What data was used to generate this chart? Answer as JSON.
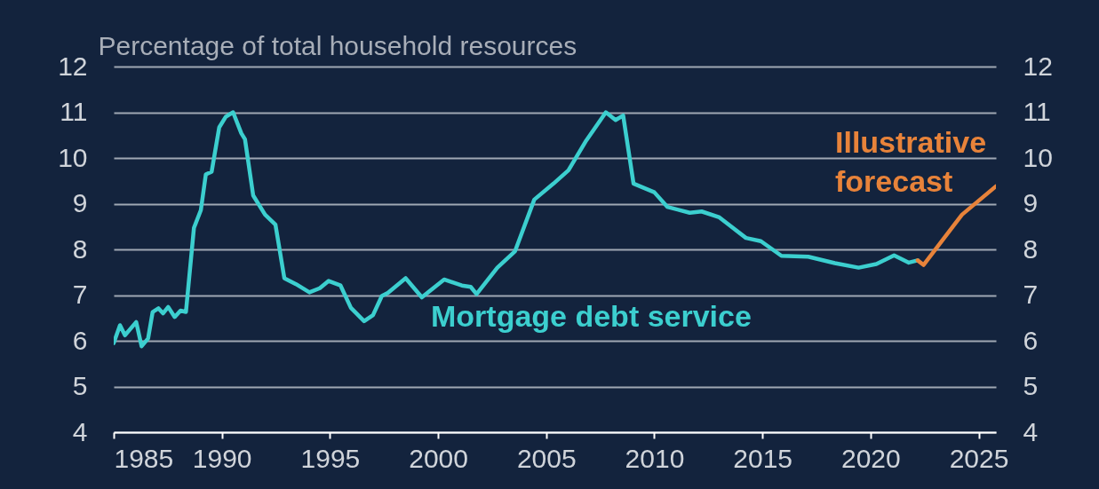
{
  "chart_data": {
    "type": "line",
    "ylabel": "Percentage of total household resources",
    "xlim": [
      1985,
      2025.8
    ],
    "xticks": [
      1985,
      1990,
      1995,
      2000,
      2005,
      2010,
      2015,
      2020,
      2025
    ],
    "ylim": [
      4,
      12
    ],
    "yticks": [
      4,
      5,
      6,
      7,
      8,
      9,
      10,
      11,
      12
    ],
    "y2lim": [
      4,
      12
    ],
    "y2ticks": [
      4,
      5,
      6,
      7,
      8,
      9,
      10,
      11,
      12
    ],
    "grid": "y",
    "line_style": "solid",
    "marker": "none",
    "series": [
      {
        "name": "Mortgage debt service",
        "color": "#3ccfcf",
        "x": [
          1985.0,
          1985.29,
          1985.52,
          1986.04,
          1986.29,
          1986.59,
          1986.8,
          1987.07,
          1987.28,
          1987.52,
          1987.82,
          1988.09,
          1988.34,
          1988.71,
          1989.03,
          1989.26,
          1989.53,
          1989.88,
          1990.18,
          1990.52,
          1990.9,
          1991.07,
          1991.45,
          1992.0,
          1992.48,
          1992.89,
          1993.43,
          1994.05,
          1994.53,
          1994.94,
          1995.49,
          1995.97,
          1996.58,
          1996.99,
          1997.4,
          1997.68,
          1998.5,
          1999.25,
          2000.28,
          2001.1,
          2001.51,
          2001.78,
          2002.74,
          2003.56,
          2004.45,
          2005.34,
          2006.03,
          2006.85,
          2007.76,
          2008.21,
          2008.56,
          2009.04,
          2010.0,
          2010.6,
          2011.64,
          2012.19,
          2013.01,
          2014.24,
          2014.93,
          2015.88,
          2017.12,
          2018.35,
          2019.45,
          2020.27,
          2021.09,
          2021.77,
          2022.18
        ],
        "values": [
          5.95,
          6.34,
          6.12,
          6.41,
          5.88,
          6.05,
          6.63,
          6.71,
          6.6,
          6.74,
          6.52,
          6.66,
          6.63,
          8.47,
          8.86,
          9.64,
          9.7,
          10.67,
          10.9,
          11.0,
          10.54,
          10.41,
          9.18,
          8.76,
          8.54,
          7.37,
          7.24,
          7.06,
          7.15,
          7.31,
          7.21,
          6.72,
          6.43,
          6.56,
          6.98,
          7.05,
          7.37,
          6.95,
          7.34,
          7.21,
          7.18,
          7.02,
          7.6,
          7.96,
          9.09,
          9.44,
          9.73,
          10.38,
          11.0,
          10.83,
          10.93,
          9.44,
          9.25,
          8.93,
          8.8,
          8.83,
          8.7,
          8.25,
          8.18,
          7.86,
          7.84,
          7.7,
          7.6,
          7.68,
          7.87,
          7.71,
          7.76
        ]
      },
      {
        "name": "Illustrative forecast",
        "color": "#e8833a",
        "x": [
          2022.18,
          2022.45,
          2024.23,
          2025.8
        ],
        "values": [
          7.76,
          7.66,
          8.76,
          9.38
        ]
      }
    ]
  }
}
